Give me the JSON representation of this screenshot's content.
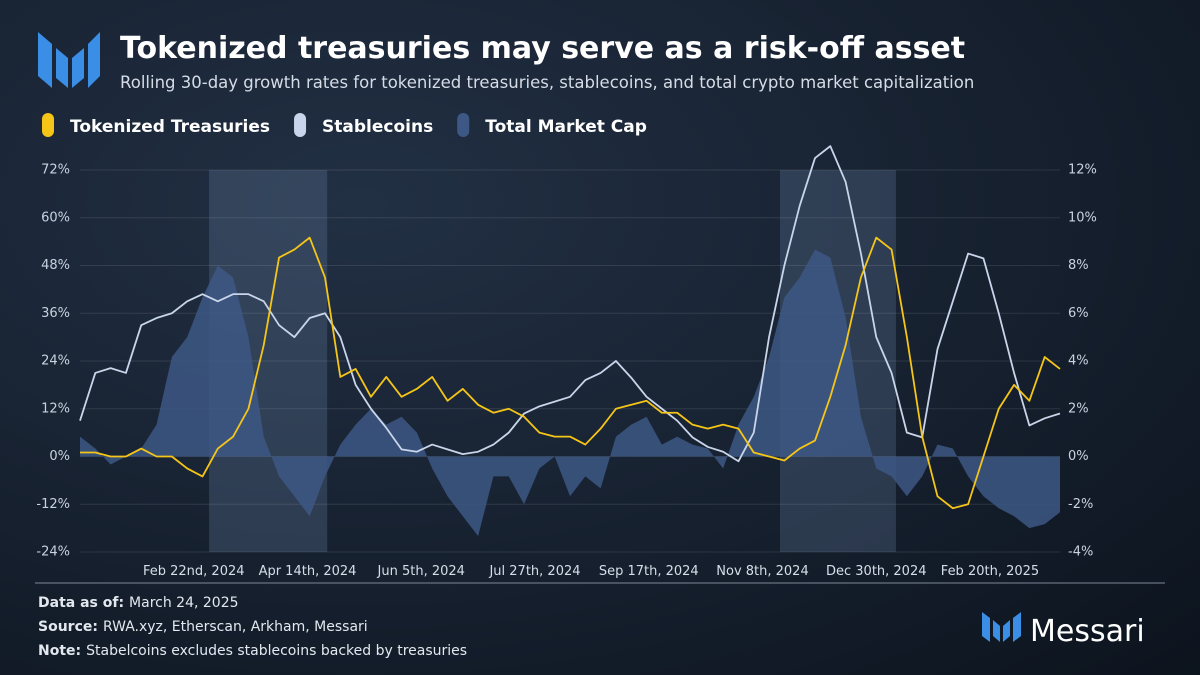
{
  "chart_data": {
    "type": "line",
    "title": "Tokenized treasuries may serve as a risk-off asset",
    "subtitle": "Rolling 30-day growth rates for tokenized treasuries, stablecoins, and total crypto market capitalization",
    "x": [
      "2024-01-01",
      "2024-01-08",
      "2024-01-15",
      "2024-01-22",
      "2024-01-29",
      "2024-02-05",
      "2024-02-12",
      "2024-02-19",
      "2024-02-26",
      "2024-03-04",
      "2024-03-11",
      "2024-03-18",
      "2024-03-25",
      "2024-04-01",
      "2024-04-08",
      "2024-04-15",
      "2024-04-22",
      "2024-04-29",
      "2024-05-06",
      "2024-05-13",
      "2024-05-20",
      "2024-05-27",
      "2024-06-03",
      "2024-06-10",
      "2024-06-17",
      "2024-06-24",
      "2024-07-01",
      "2024-07-08",
      "2024-07-15",
      "2024-07-22",
      "2024-07-29",
      "2024-08-05",
      "2024-08-12",
      "2024-08-19",
      "2024-08-26",
      "2024-09-02",
      "2024-09-09",
      "2024-09-16",
      "2024-09-23",
      "2024-09-30",
      "2024-10-07",
      "2024-10-14",
      "2024-10-21",
      "2024-10-28",
      "2024-11-04",
      "2024-11-11",
      "2024-11-18",
      "2024-11-25",
      "2024-12-02",
      "2024-12-09",
      "2024-12-16",
      "2024-12-23",
      "2024-12-30",
      "2025-01-06",
      "2025-01-13",
      "2025-01-20",
      "2025-01-27",
      "2025-02-03",
      "2025-02-10",
      "2025-02-17",
      "2025-02-24",
      "2025-03-03",
      "2025-03-10",
      "2025-03-17",
      "2025-03-24"
    ],
    "xlim": [
      "2024-01-01",
      "2025-03-24"
    ],
    "xticks": [
      {
        "value": "2024-02-22",
        "label": "Feb 22nd, 2024"
      },
      {
        "value": "2024-04-14",
        "label": "Apr 14th, 2024"
      },
      {
        "value": "2024-06-05",
        "label": "Jun 5th, 2024"
      },
      {
        "value": "2024-07-27",
        "label": "Jul 27th, 2024"
      },
      {
        "value": "2024-09-17",
        "label": "Sep 17th, 2024"
      },
      {
        "value": "2024-11-08",
        "label": "Nov 8th, 2024"
      },
      {
        "value": "2024-12-30",
        "label": "Dec 30th, 2024"
      },
      {
        "value": "2025-02-20",
        "label": "Feb 20th, 2025"
      }
    ],
    "ylim": [
      -24,
      72
    ],
    "yticks": [
      {
        "value": -24,
        "label": "-24%"
      },
      {
        "value": -12,
        "label": "-12%"
      },
      {
        "value": 0,
        "label": "0%"
      },
      {
        "value": 12,
        "label": "12%"
      },
      {
        "value": 24,
        "label": "24%"
      },
      {
        "value": 36,
        "label": "36%"
      },
      {
        "value": 48,
        "label": "48%"
      },
      {
        "value": 60,
        "label": "60%"
      },
      {
        "value": 72,
        "label": "72%"
      }
    ],
    "y2lim": [
      -4,
      12
    ],
    "y2ticks": [
      {
        "value": -4,
        "label": "-4%"
      },
      {
        "value": -2,
        "label": "-2%"
      },
      {
        "value": 0,
        "label": "0%"
      },
      {
        "value": 2,
        "label": "2%"
      },
      {
        "value": 4,
        "label": "4%"
      },
      {
        "value": 6,
        "label": "6%"
      },
      {
        "value": 8,
        "label": "8%"
      },
      {
        "value": 10,
        "label": "10%"
      },
      {
        "value": 12,
        "label": "12%"
      }
    ],
    "grid": true,
    "highlights": [
      {
        "start": "2024-02-29",
        "end": "2024-04-23"
      },
      {
        "start": "2024-11-16",
        "end": "2025-01-08"
      }
    ],
    "series": [
      {
        "name": "Total Market Cap",
        "color": "#3d5885",
        "style": "area",
        "values": [
          5,
          2,
          -2,
          0,
          2,
          8,
          25,
          30,
          40,
          48,
          45,
          30,
          5,
          -5,
          -10,
          -15,
          -5,
          3,
          8,
          12,
          8,
          10,
          6,
          -3,
          -10,
          -15,
          -20,
          -5,
          -5,
          -12,
          -3,
          0,
          -10,
          -5,
          -8,
          5,
          8,
          10,
          3,
          5,
          3,
          2,
          -3,
          8,
          15,
          25,
          40,
          45,
          52,
          50,
          35,
          10,
          -3,
          -5,
          -10,
          -5,
          3,
          2,
          -5,
          -10,
          -13,
          -15,
          -18,
          -17,
          -14
        ]
      },
      {
        "name": "Stablecoins",
        "color": "#c9d5ea",
        "style": "line",
        "axis": "y2",
        "values": [
          1.5,
          3.5,
          3.7,
          3.5,
          5.5,
          5.8,
          6,
          6.5,
          6.8,
          6.5,
          6.8,
          6.8,
          6.5,
          5.5,
          5,
          5.8,
          6,
          5,
          3,
          2,
          1.2,
          0.3,
          0.2,
          0.5,
          0.3,
          0.1,
          0.2,
          0.5,
          1,
          1.8,
          2.1,
          2.3,
          2.5,
          3.2,
          3.5,
          4,
          3.3,
          2.5,
          2,
          1.5,
          0.8,
          0.4,
          0.2,
          -0.2,
          1,
          5,
          8,
          10.5,
          12.5,
          13,
          11.5,
          8.5,
          5,
          3.5,
          1,
          0.8,
          4.5,
          6.5,
          8.5,
          8.3,
          6,
          3.5,
          1.3,
          1.6,
          1.8
        ]
      },
      {
        "name": "Tokenized Treasuries",
        "color": "#f5c518",
        "style": "line",
        "values": [
          1,
          1,
          0,
          0,
          2,
          0,
          0,
          -3,
          -5,
          2,
          5,
          12,
          28,
          50,
          52,
          55,
          45,
          20,
          22,
          15,
          20,
          15,
          17,
          20,
          14,
          17,
          13,
          11,
          12,
          10,
          6,
          5,
          5,
          3,
          7,
          12,
          13,
          14,
          11,
          11,
          8,
          7,
          8,
          7,
          1,
          0,
          -1,
          2,
          4,
          15,
          28,
          45,
          55,
          52,
          30,
          5,
          -10,
          -13,
          -12,
          0,
          12,
          18,
          14,
          25,
          22
        ]
      }
    ],
    "legend_order": [
      2,
      1,
      0
    ]
  },
  "notes": [
    {
      "label": "Data as of:",
      "text": "March 24, 2025"
    },
    {
      "label": "Source:",
      "text": "RWA.xyz, Etherscan, Arkham, Messari"
    },
    {
      "label": "Note:",
      "text": "Stabelcoins excludes stablecoins backed by treasuries"
    }
  ],
  "brand": "Messari"
}
